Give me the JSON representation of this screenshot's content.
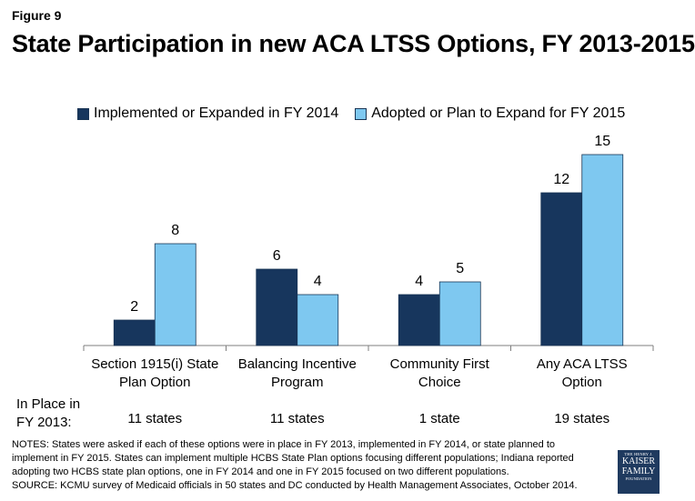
{
  "figure_label": "Figure 9",
  "title": "State Participation in new ACA LTSS Options, FY 2013-2015",
  "colors": {
    "series1": "#17365d",
    "series2": "#7ec8f0",
    "axis": "#7f7f7f"
  },
  "chart_data": {
    "type": "bar",
    "title": "State Participation in new ACA LTSS Options, FY 2013-2015",
    "categories": [
      "Section 1915(i) State Plan Option",
      "Balancing Incentive Program",
      "Community First Choice",
      "Any ACA LTSS Option"
    ],
    "category_lines": [
      [
        "Section 1915(i) State",
        "Plan Option"
      ],
      [
        "Balancing Incentive",
        "Program"
      ],
      [
        "Community First",
        "Choice"
      ],
      [
        "Any ACA LTSS",
        "Option"
      ]
    ],
    "series": [
      {
        "name": "Implemented or Expanded in FY 2014",
        "values": [
          2,
          6,
          4,
          12
        ]
      },
      {
        "name": "Adopted or Plan to Expand for FY 2015",
        "values": [
          8,
          4,
          5,
          15
        ]
      }
    ],
    "ylim": [
      0,
      16
    ],
    "legend_position": "top",
    "xlabel": "",
    "ylabel": ""
  },
  "in_place": {
    "label_line1": "In Place in",
    "label_line2": "FY 2013:",
    "values": [
      "11 states",
      "11 states",
      "1 state",
      "19 states"
    ]
  },
  "notes": {
    "line1": "NOTES: States were asked if each of these options were in place in FY 2013, implemented in FY 2014, or state planned to",
    "line2": "implement in FY 2015. States can implement multiple HCBS State Plan options focusing different populations; Indiana reported",
    "line3": "adopting two HCBS state plan options, one in FY 2014 and one in FY 2015 focused on two different populations.",
    "line4": "SOURCE: KCMU survey of Medicaid officials in 50 states and DC conducted by Health Management Associates, October 2014."
  },
  "logo": {
    "line1": "THE HENRY J.",
    "line2": "KAISER",
    "line3": "FAMILY",
    "line4": "FOUNDATION"
  }
}
